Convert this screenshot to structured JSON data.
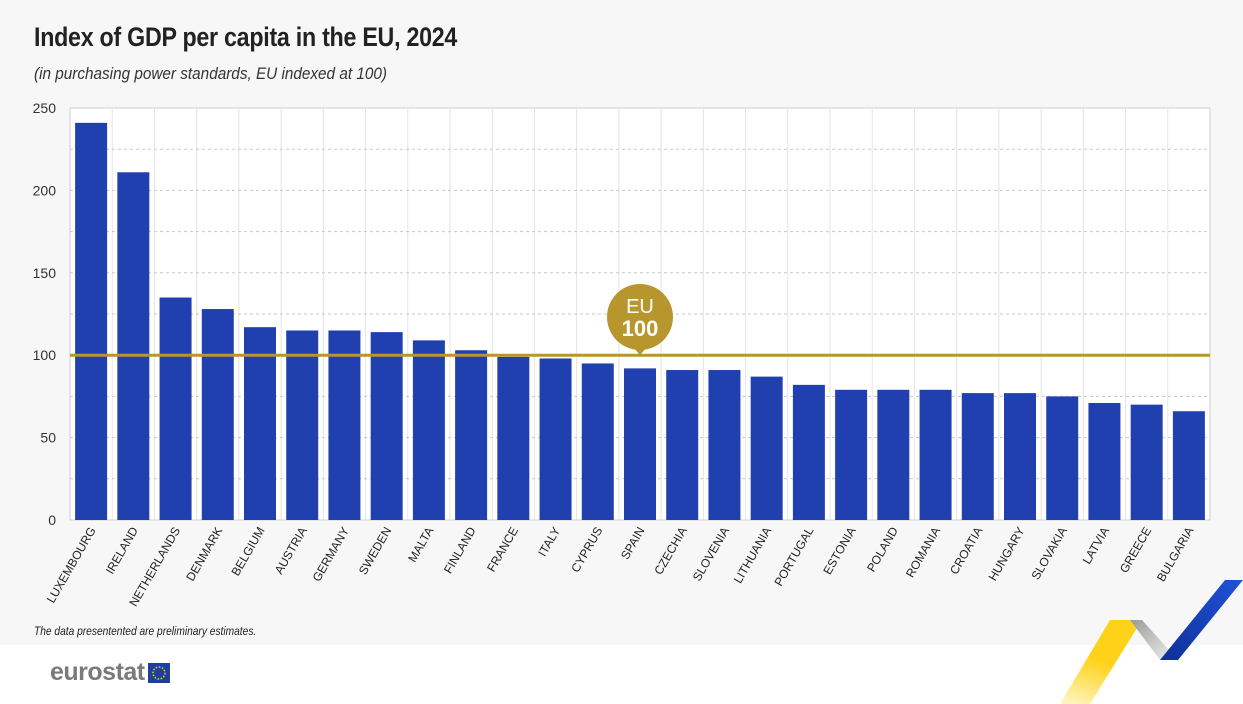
{
  "title": "Index of GDP per capita in the EU, 2024",
  "subtitle": "(in purchasing power standards, EU indexed at 100)",
  "note": "The data presentented are preliminary estimates.",
  "logo": {
    "text": "eurostat"
  },
  "colors": {
    "bar": "#2140b0",
    "reference": "#b8962e",
    "grid": "#d8d8d8"
  },
  "chart_data": {
    "type": "bar",
    "title": "Index of GDP per capita in the EU, 2024",
    "subtitle": "(in purchasing power standards, EU indexed at 100)",
    "categories": [
      "LUXEMBOURG",
      "IRELAND",
      "NETHERLANDS",
      "DENMARK",
      "BELGIUM",
      "AUSTRIA",
      "GERMANY",
      "SWEDEN",
      "MALTA",
      "FINLAND",
      "FRANCE",
      "ITALY",
      "CYPRUS",
      "SPAIN",
      "CZECHIA",
      "SLOVENIA",
      "LITHUANIA",
      "PORTUGAL",
      "ESTONIA",
      "POLAND",
      "ROMANIA",
      "CROATIA",
      "HUNGARY",
      "SLOVAKIA",
      "LATVIA",
      "GREECE",
      "BULGARIA"
    ],
    "values": [
      241,
      211,
      135,
      128,
      117,
      115,
      115,
      114,
      109,
      103,
      99,
      98,
      95,
      92,
      91,
      91,
      87,
      82,
      79,
      79,
      79,
      77,
      77,
      75,
      71,
      70,
      66
    ],
    "ylim": [
      0,
      250
    ],
    "yticks": [
      0,
      50,
      100,
      150,
      200,
      250
    ],
    "grid": true,
    "reference_line": {
      "value": 100,
      "label_line1": "EU",
      "label_line2": "100"
    }
  }
}
